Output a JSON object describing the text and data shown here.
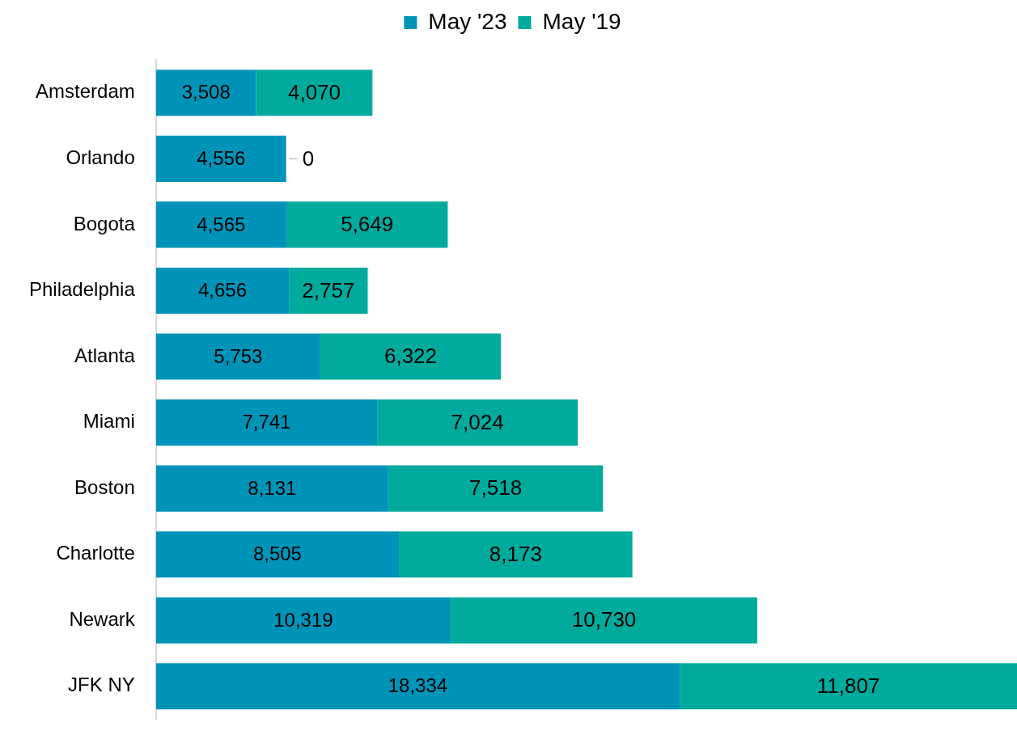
{
  "chart_data": {
    "type": "bar",
    "orientation": "horizontal",
    "stacked": true,
    "legend": "top",
    "grid": false,
    "categories": [
      "Amsterdam",
      "Orlando",
      "Bogota",
      "Philadelphia",
      "Atlanta",
      "Miami",
      "Boston",
      "Charlotte",
      "Newark",
      "JFK NY"
    ],
    "series": [
      {
        "name": "May '23",
        "color": "#0093b8",
        "values": [
          3508,
          4556,
          4565,
          4656,
          5753,
          7741,
          8131,
          8505,
          10319,
          18334
        ],
        "value_labels": [
          "3,508",
          "4,556",
          "4,565",
          "4,656",
          "5,753",
          "7,741",
          "8,131",
          "8,505",
          "10,319",
          "18,334"
        ]
      },
      {
        "name": "May '19",
        "color": "#00aa9d",
        "values": [
          4070,
          0,
          5649,
          2757,
          6322,
          7024,
          7518,
          8173,
          10730,
          11807
        ],
        "value_labels": [
          "4,070",
          "0",
          "5,649",
          "2,757",
          "6,322",
          "7,024",
          "7,518",
          "8,173",
          "10,730",
          "11,807"
        ]
      }
    ]
  }
}
